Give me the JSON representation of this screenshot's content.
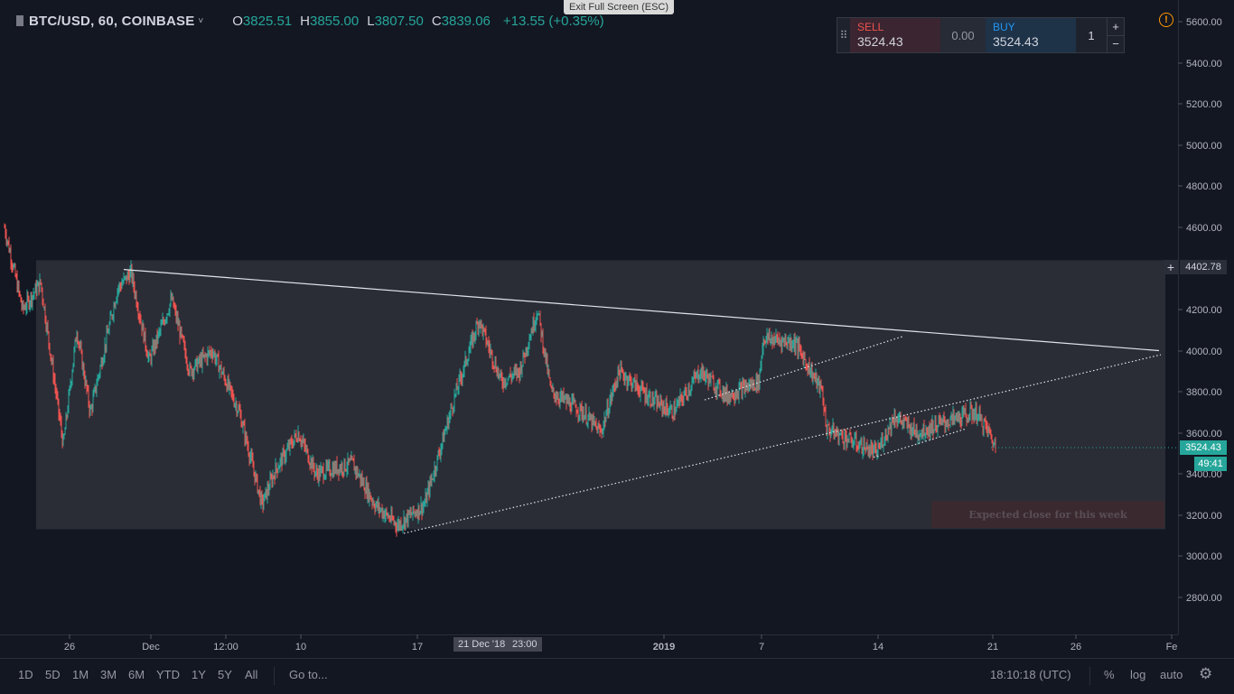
{
  "header": {
    "symbol": "BTC/USD, 60, COINBASE",
    "chevron": "˅",
    "ohlc": [
      {
        "key": "O",
        "value": "3825.51"
      },
      {
        "key": "H",
        "value": "3855.00"
      },
      {
        "key": "L",
        "value": "3807.50"
      },
      {
        "key": "C",
        "value": "3839.06"
      }
    ],
    "change": "+13.55 (+0.35%)"
  },
  "exit_fullscreen": "Exit Full Screen (ESC)",
  "trade_panel": {
    "sell_label": "SELL",
    "sell_price": "3524.43",
    "spread": "0.00",
    "buy_label": "BUY",
    "buy_price": "3524.43",
    "quantity": "1",
    "plus": "+",
    "minus": "−"
  },
  "warning_icon": "!",
  "price_axis": {
    "ticks": [
      "5600.00",
      "5400.00",
      "5200.00",
      "5000.00",
      "4800.00",
      "4600.00",
      "4200.00",
      "4000.00",
      "3800.00",
      "3600.00",
      "3400.00",
      "3200.00",
      "3000.00",
      "2800.00"
    ],
    "cursor_price": "4402.78",
    "last_price": "3524.43",
    "countdown": "49:41"
  },
  "time_axis": {
    "ticks": [
      "26",
      "Dec",
      "12:00",
      "10",
      "17",
      "2019",
      "7",
      "14",
      "21",
      "26",
      "Fe"
    ],
    "highlight_date": "21 Dec '18",
    "highlight_time": "23:00"
  },
  "annotation": {
    "expected_close": "Expected close for this week"
  },
  "bottom_toolbar": {
    "ranges": [
      "1D",
      "5D",
      "1M",
      "3M",
      "6M",
      "YTD",
      "1Y",
      "5Y",
      "All"
    ],
    "goto": "Go to...",
    "clock": "18:10:18 (UTC)",
    "percent": "%",
    "log": "log",
    "auto": "auto"
  },
  "colors": {
    "background": "#131722",
    "up": "#26a69a",
    "down": "#ef5350",
    "range_box": "#2a2d36"
  },
  "chart_data": {
    "type": "candlestick",
    "symbol": "BTC/USD",
    "interval": "60",
    "exchange": "COINBASE",
    "ylim": [
      2700,
      5700
    ],
    "last_price": 3524.43,
    "drawings": {
      "descending_trendline": [
        [
          4395,
          4000
        ]
      ],
      "ascending_support_dotted": [
        [
          3110,
          4070
        ]
      ],
      "range_box": [
        3130,
        4440
      ]
    },
    "price_path": [
      [
        0,
        4600
      ],
      [
        20,
        4200
      ],
      [
        40,
        4330
      ],
      [
        65,
        3540
      ],
      [
        80,
        4100
      ],
      [
        95,
        3700
      ],
      [
        110,
        4000
      ],
      [
        125,
        4300
      ],
      [
        140,
        4380
      ],
      [
        160,
        3950
      ],
      [
        185,
        4250
      ],
      [
        205,
        3900
      ],
      [
        230,
        4000
      ],
      [
        260,
        3700
      ],
      [
        285,
        3250
      ],
      [
        300,
        3420
      ],
      [
        325,
        3600
      ],
      [
        345,
        3400
      ],
      [
        385,
        3450
      ],
      [
        410,
        3250
      ],
      [
        435,
        3150
      ],
      [
        465,
        3250
      ],
      [
        500,
        3800
      ],
      [
        525,
        4150
      ],
      [
        550,
        3850
      ],
      [
        570,
        3900
      ],
      [
        590,
        4200
      ],
      [
        605,
        3800
      ],
      [
        640,
        3700
      ],
      [
        660,
        3600
      ],
      [
        680,
        3900
      ],
      [
        720,
        3750
      ],
      [
        740,
        3700
      ],
      [
        770,
        3900
      ],
      [
        800,
        3780
      ],
      [
        835,
        3850
      ],
      [
        840,
        4060
      ],
      [
        875,
        4040
      ],
      [
        905,
        3800
      ],
      [
        910,
        3620
      ],
      [
        965,
        3500
      ],
      [
        985,
        3680
      ],
      [
        1010,
        3600
      ],
      [
        1040,
        3650
      ],
      [
        1075,
        3700
      ],
      [
        1090,
        3600
      ],
      [
        1097,
        3524
      ]
    ]
  }
}
